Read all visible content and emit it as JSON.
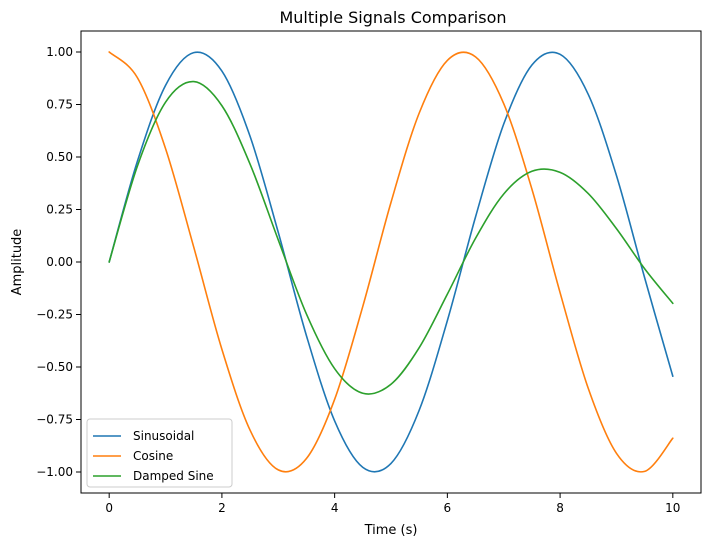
{
  "chart_data": {
    "type": "line",
    "title": "Multiple Signals Comparison",
    "xlabel": "Time (s)",
    "ylabel": "Amplitude",
    "xlim": [
      -0.5,
      10.5
    ],
    "ylim": [
      -1.1,
      1.1
    ],
    "xticks": [
      0,
      2,
      4,
      6,
      8,
      10
    ],
    "xtick_labels": [
      "0",
      "2",
      "4",
      "6",
      "8",
      "10"
    ],
    "yticks": [
      -1.0,
      -0.75,
      -0.5,
      -0.25,
      0.0,
      0.25,
      0.5,
      0.75,
      1.0
    ],
    "ytick_labels": [
      "−1.00",
      "−0.75",
      "−0.50",
      "−0.25",
      "0.00",
      "0.25",
      "0.50",
      "0.75",
      "1.00"
    ],
    "grid": false,
    "legend": "lower-left",
    "x": [
      0,
      0.5,
      1,
      1.5,
      2,
      2.5,
      3,
      3.5,
      4,
      4.5,
      5,
      5.5,
      6,
      6.5,
      7,
      7.5,
      8,
      8.5,
      9,
      9.5,
      10
    ],
    "series": [
      {
        "name": "Sinusoidal",
        "color": "#1f77b4",
        "values": [
          0.0,
          0.479,
          0.841,
          0.997,
          0.909,
          0.598,
          0.141,
          -0.351,
          -0.757,
          -0.978,
          -0.959,
          -0.706,
          -0.279,
          0.215,
          0.657,
          0.938,
          0.989,
          0.798,
          0.412,
          -0.075,
          -0.544
        ]
      },
      {
        "name": "Cosine",
        "color": "#ff7f0e",
        "values": [
          1.0,
          0.878,
          0.54,
          0.071,
          -0.416,
          -0.801,
          -0.99,
          -0.936,
          -0.654,
          -0.211,
          0.284,
          0.709,
          0.96,
          0.977,
          0.754,
          0.347,
          -0.146,
          -0.602,
          -0.911,
          -0.997,
          -0.839
        ]
      },
      {
        "name": "Damped Sine",
        "color": "#2ca02c",
        "values": [
          0.0,
          0.456,
          0.761,
          0.859,
          0.744,
          0.466,
          0.105,
          -0.248,
          -0.508,
          -0.625,
          -0.582,
          -0.408,
          -0.153,
          0.113,
          0.324,
          0.432,
          0.427,
          0.326,
          0.159,
          -0.032,
          -0.197
        ]
      }
    ]
  }
}
